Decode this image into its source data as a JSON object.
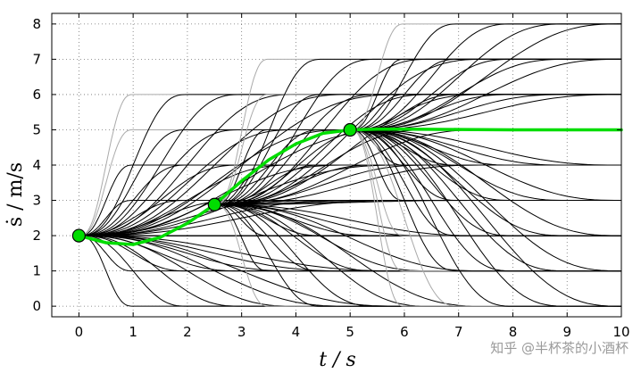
{
  "chart_data": {
    "type": "line",
    "title": "",
    "xlabel": "t / s",
    "ylabel": "ṡ / m/s",
    "xlim": [
      -0.5,
      10
    ],
    "ylim": [
      -0.3,
      8.3
    ],
    "xticks": [
      0,
      1,
      2,
      3,
      4,
      5,
      6,
      7,
      8,
      9,
      10
    ],
    "yticks": [
      0,
      1,
      2,
      3,
      4,
      5,
      6,
      7,
      8
    ],
    "grid": true,
    "legend": "none",
    "series": [
      {
        "role": "selected-trajectory",
        "color": "#00dd00",
        "x": [
          0,
          0.5,
          1,
          1.5,
          2,
          2.5,
          3,
          3.5,
          4,
          4.5,
          5,
          5.5,
          6,
          7,
          8,
          9,
          10
        ],
        "y": [
          2.0,
          1.8,
          1.75,
          1.95,
          2.35,
          2.88,
          3.55,
          4.15,
          4.6,
          4.9,
          5.0,
          5.02,
          5.02,
          5.01,
          5.0,
          5.0,
          5.0
        ]
      }
    ],
    "waypoints": [
      {
        "x": 0,
        "y": 2.0
      },
      {
        "x": 2.5,
        "y": 2.88
      },
      {
        "x": 5,
        "y": 5.0
      }
    ],
    "candidate_families": [
      {
        "start_t": 0,
        "start_v": 2.0,
        "end_ts": [
          1,
          2,
          3,
          4,
          5,
          6
        ],
        "end_vs": [
          0,
          1,
          2,
          3,
          4,
          5,
          6
        ]
      },
      {
        "start_t": 2.5,
        "start_v": 2.88,
        "end_ts": [
          3.5,
          4.5,
          5.5,
          6.5,
          7.5
        ],
        "end_vs": [
          0,
          1,
          2,
          3,
          4,
          5,
          6,
          7
        ]
      },
      {
        "start_t": 5,
        "start_v": 5.0,
        "end_ts": [
          6,
          7,
          8,
          9,
          10
        ],
        "end_vs": [
          0,
          1,
          2,
          3,
          4,
          5,
          6,
          7,
          8
        ]
      }
    ],
    "candidate_color": "#000000",
    "out_of_limit_color": "#aaaaaa"
  },
  "watermark": "知乎 @半杯茶的小酒杯"
}
